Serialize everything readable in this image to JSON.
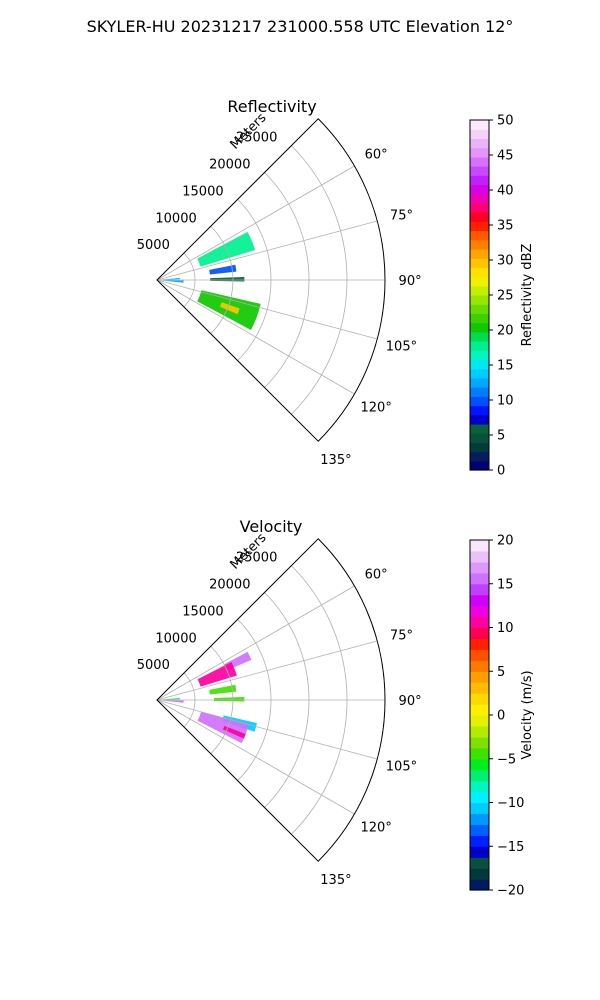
{
  "suptitle": "SKYLER-HU  20231217  231000.558 UTC Elevation 12°",
  "chart_data": [
    {
      "type": "heatmap",
      "projection": "polar-sector",
      "title": "Reflectivity",
      "range_label": "Meters",
      "range_ticks": [
        5000,
        10000,
        15000,
        20000,
        25000
      ],
      "range_tick_labels": [
        "5000",
        "10000",
        "15000",
        "20000",
        "25000"
      ],
      "range_max": 30000,
      "azimuth_range": [
        45,
        135
      ],
      "azimuth_ticks": [
        60,
        75,
        90,
        105,
        120,
        135
      ],
      "azimuth_tick_labels": [
        "60°",
        "75°",
        "90°",
        "105°",
        "120°",
        "135°"
      ],
      "grid": true,
      "colorbar": {
        "label": "Reflectivity dBZ",
        "range": [
          0,
          50
        ],
        "ticks": [
          0,
          5,
          10,
          15,
          20,
          25,
          30,
          35,
          40,
          45,
          50
        ],
        "tick_labels": [
          "0",
          "5",
          "10",
          "15",
          "20",
          "25",
          "30",
          "35",
          "40",
          "45",
          "50"
        ]
      },
      "echo_regions": [
        {
          "az": [
            62,
            73
          ],
          "range": [
            6000,
            13500
          ],
          "value": 18
        },
        {
          "az": [
            79,
            84
          ],
          "range": [
            7000,
            10500
          ],
          "value": 10
        },
        {
          "az": [
            85,
            88
          ],
          "range": [
            500,
            3000
          ],
          "value": 13
        },
        {
          "az": [
            88,
            91
          ],
          "range": [
            7000,
            11500
          ],
          "value": 6
        },
        {
          "az": [
            91,
            96
          ],
          "range": [
            500,
            3500
          ],
          "value": 12
        },
        {
          "az": [
            103,
            118
          ],
          "range": [
            6000,
            14000
          ],
          "value": 20
        },
        {
          "az": [
            109,
            113
          ],
          "range": [
            9000,
            11500
          ],
          "value": 30
        }
      ]
    },
    {
      "type": "heatmap",
      "projection": "polar-sector",
      "title": "Velocity",
      "range_label": "Meters",
      "range_ticks": [
        5000,
        10000,
        15000,
        20000,
        25000
      ],
      "range_tick_labels": [
        "5000",
        "10000",
        "15000",
        "20000",
        "25000"
      ],
      "range_max": 30000,
      "azimuth_range": [
        45,
        135
      ],
      "azimuth_ticks": [
        60,
        75,
        90,
        105,
        120,
        135
      ],
      "azimuth_tick_labels": [
        "60°",
        "75°",
        "90°",
        "105°",
        "120°",
        "135°"
      ],
      "grid": true,
      "colorbar": {
        "label": "Velocity (m/s)",
        "range": [
          -20,
          20
        ],
        "ticks": [
          -20,
          -15,
          -10,
          -5,
          0,
          5,
          10,
          15,
          20
        ],
        "tick_labels": [
          "−20",
          "−15",
          "−10",
          "−5",
          "0",
          "5",
          "10",
          "15",
          "20"
        ]
      },
      "echo_regions": [
        {
          "az": [
            62,
            67
          ],
          "range": [
            10000,
            13500
          ],
          "value": 16
        },
        {
          "az": [
            63,
            73
          ],
          "range": [
            6000,
            11000
          ],
          "value": 10
        },
        {
          "az": [
            79,
            84
          ],
          "range": [
            7000,
            10500
          ],
          "value": -4
        },
        {
          "az": [
            85,
            88
          ],
          "range": [
            500,
            3000
          ],
          "value": -6
        },
        {
          "az": [
            88,
            91
          ],
          "range": [
            7500,
            11500
          ],
          "value": -5
        },
        {
          "az": [
            91,
            96
          ],
          "range": [
            500,
            3500
          ],
          "value": 15
        },
        {
          "az": [
            103,
            108
          ],
          "range": [
            9000,
            13500
          ],
          "value": -11
        },
        {
          "az": [
            105,
            117
          ],
          "range": [
            6000,
            12500
          ],
          "value": 15
        },
        {
          "az": [
            111,
            114
          ],
          "range": [
            9500,
            12500
          ],
          "value": 10
        }
      ]
    }
  ]
}
